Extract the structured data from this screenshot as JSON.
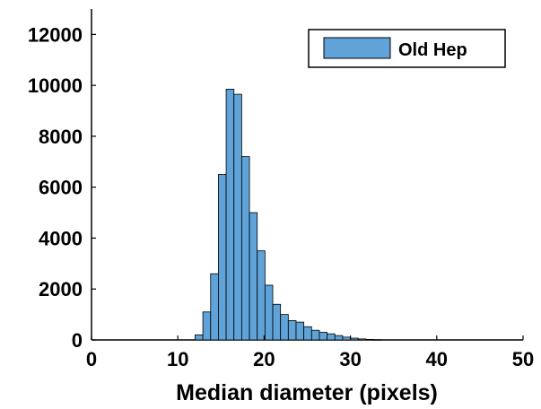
{
  "chart_data": {
    "type": "bar",
    "subtype": "histogram",
    "title": "",
    "xlabel": "Median diameter (pixels)",
    "ylabel": "",
    "xlim": [
      0,
      50
    ],
    "ylim": [
      0,
      13000
    ],
    "x_ticks": [
      "0",
      "10",
      "20",
      "30",
      "40",
      "50"
    ],
    "y_ticks": [
      "0",
      "2000",
      "4000",
      "6000",
      "8000",
      "10000",
      "12000"
    ],
    "grid": false,
    "legend_position": "top-right",
    "bin_width": 0.9,
    "bar_color": "#5fa3d8",
    "series": [
      {
        "name": "Old Hep",
        "bins": [
          {
            "x": 12.0,
            "y": 200
          },
          {
            "x": 12.9,
            "y": 1100
          },
          {
            "x": 13.8,
            "y": 2600
          },
          {
            "x": 14.7,
            "y": 6500
          },
          {
            "x": 15.6,
            "y": 9850
          },
          {
            "x": 16.5,
            "y": 9650
          },
          {
            "x": 17.4,
            "y": 7200
          },
          {
            "x": 18.3,
            "y": 5000
          },
          {
            "x": 19.2,
            "y": 3500
          },
          {
            "x": 20.1,
            "y": 2150
          },
          {
            "x": 21.0,
            "y": 1400
          },
          {
            "x": 21.9,
            "y": 1000
          },
          {
            "x": 22.8,
            "y": 760
          },
          {
            "x": 23.7,
            "y": 700
          },
          {
            "x": 24.6,
            "y": 520
          },
          {
            "x": 25.5,
            "y": 380
          },
          {
            "x": 26.4,
            "y": 300
          },
          {
            "x": 27.3,
            "y": 240
          },
          {
            "x": 28.2,
            "y": 170
          },
          {
            "x": 29.1,
            "y": 110
          },
          {
            "x": 30.0,
            "y": 70
          },
          {
            "x": 30.9,
            "y": 40
          },
          {
            "x": 31.8,
            "y": 20
          },
          {
            "x": 32.7,
            "y": 10
          }
        ]
      }
    ]
  }
}
